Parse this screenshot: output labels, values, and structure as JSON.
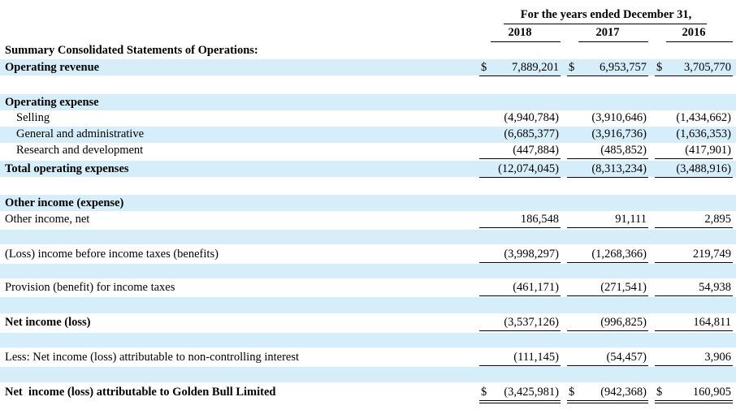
{
  "header": {
    "period": "For the years ended December 31,",
    "years": [
      "2018",
      "2017",
      "2016"
    ]
  },
  "table": {
    "rows": [
      {
        "label": "Summary Consolidated Statements of Operations:"
      },
      {
        "label": "Operating revenue",
        "currency": "$",
        "values": [
          "7,889,201",
          "6,953,757",
          "3,705,770"
        ]
      },
      {
        "label": "Operating expense"
      },
      {
        "label": "Selling",
        "values": [
          "(4,940,784)",
          "(3,910,646)",
          "(1,434,662)"
        ]
      },
      {
        "label": "General and administrative",
        "values": [
          "(6,685,377)",
          "(3,916,736)",
          "(1,636,353)"
        ]
      },
      {
        "label": "Research and development",
        "values": [
          "(447,884)",
          "(485,852)",
          "(417,901)"
        ]
      },
      {
        "label": "Total operating expenses",
        "values": [
          "(12,074,045)",
          "(8,313,234)",
          "(3,488,916)"
        ]
      },
      {
        "label": "Other income (expense)"
      },
      {
        "label": "Other income, net",
        "values": [
          "186,548",
          "91,111",
          "2,895"
        ]
      },
      {
        "label": "(Loss) income before income taxes (benefits)",
        "values": [
          "(3,998,297)",
          "(1,268,366)",
          "219,749"
        ]
      },
      {
        "label": "Provision (benefit) for income taxes",
        "values": [
          "(461,171)",
          "(271,541)",
          "54,938"
        ]
      },
      {
        "label": "Net income (loss)",
        "values": [
          "(3,537,126)",
          "(996,825)",
          "164,811"
        ]
      },
      {
        "label": "Less: Net income (loss) attributable to non-controlling interest",
        "values": [
          "(111,145)",
          "(54,457)",
          "3,906"
        ]
      },
      {
        "label": "Net  income (loss) attributable to Golden Bull Limited",
        "currency": "$",
        "values": [
          "(3,425,981)",
          "(942,368)",
          "160,905"
        ]
      }
    ]
  }
}
